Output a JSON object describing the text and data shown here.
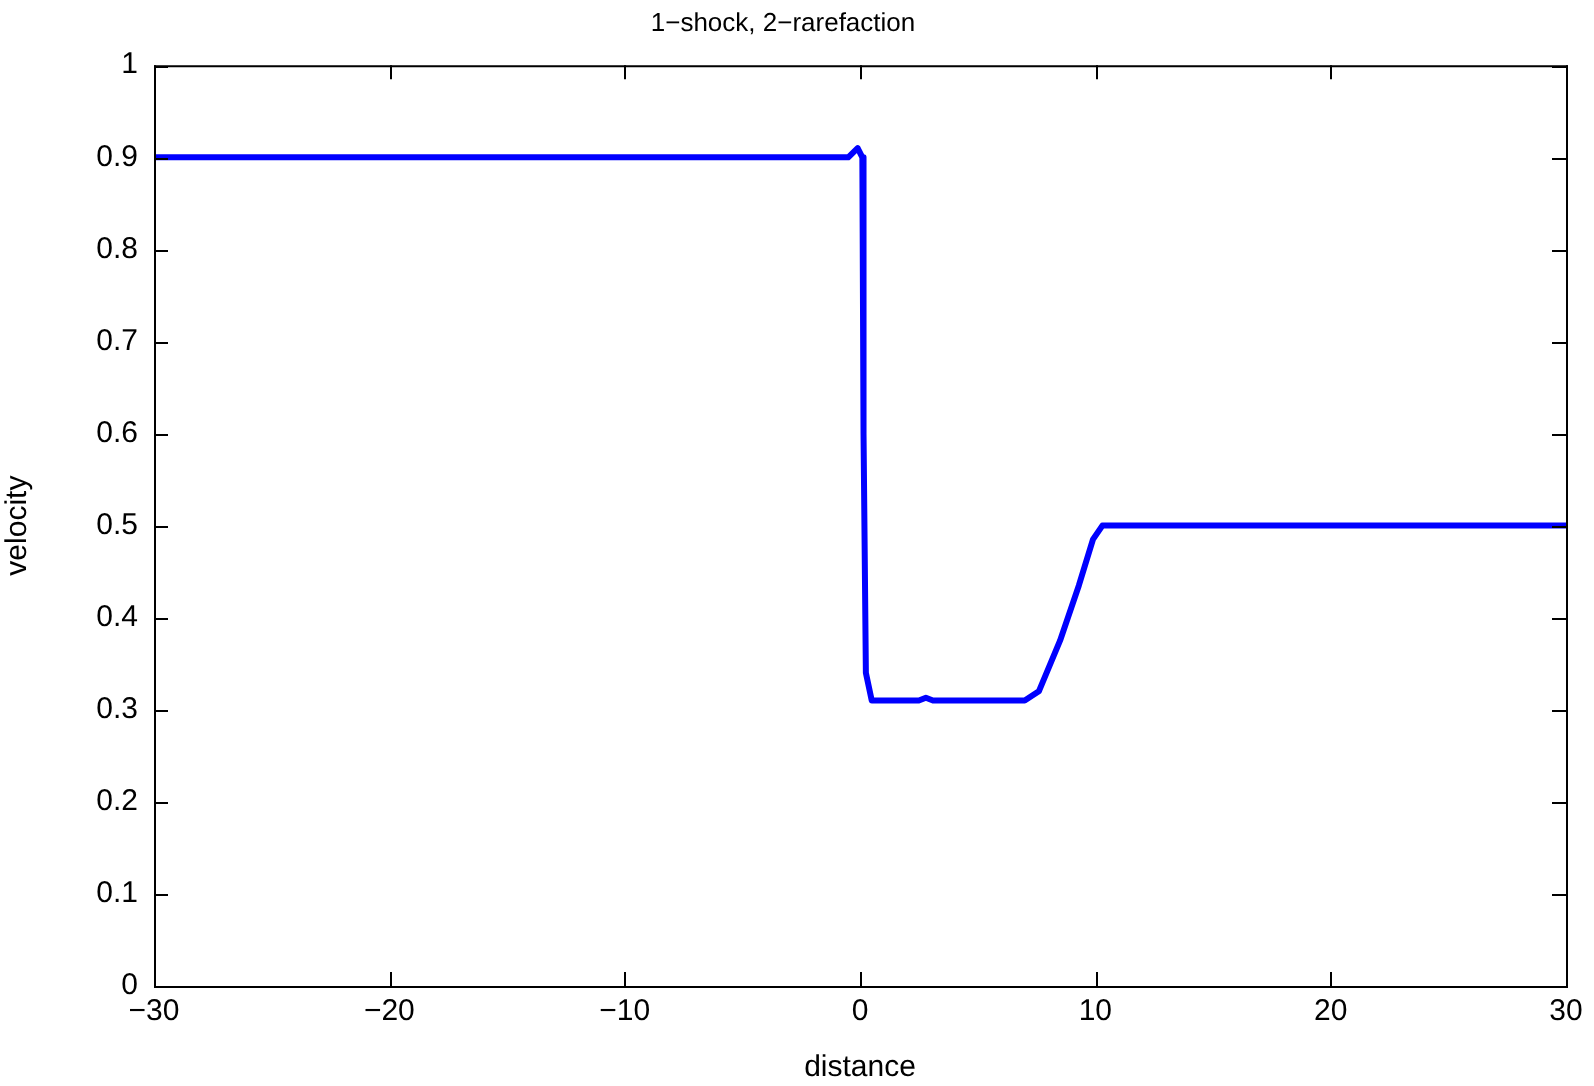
{
  "chart_data": {
    "type": "line",
    "title": "1−shock, 2−rarefaction",
    "xlabel": "distance",
    "ylabel": "velocity",
    "x": [
      -30,
      -0.5,
      -0.1,
      0.1,
      0.15,
      0.25,
      0.5,
      2.5,
      2.8,
      3.1,
      7,
      7.6,
      8.5,
      9.3,
      9.9,
      10.3,
      30
    ],
    "values": [
      0.9,
      0.9,
      0.91,
      0.9,
      0.6,
      0.34,
      0.31,
      0.31,
      0.313,
      0.31,
      0.31,
      0.32,
      0.375,
      0.435,
      0.485,
      0.5,
      0.5
    ],
    "color": "#0000ff",
    "xlim": [
      -30,
      30
    ],
    "ylim": [
      0,
      1
    ],
    "xticks": [
      -30,
      -20,
      -10,
      0,
      10,
      20,
      30
    ],
    "yticks": [
      0,
      0.1,
      0.2,
      0.3,
      0.4,
      0.5,
      0.6,
      0.7,
      0.8,
      0.9,
      1
    ],
    "grid": false,
    "legend": false
  }
}
